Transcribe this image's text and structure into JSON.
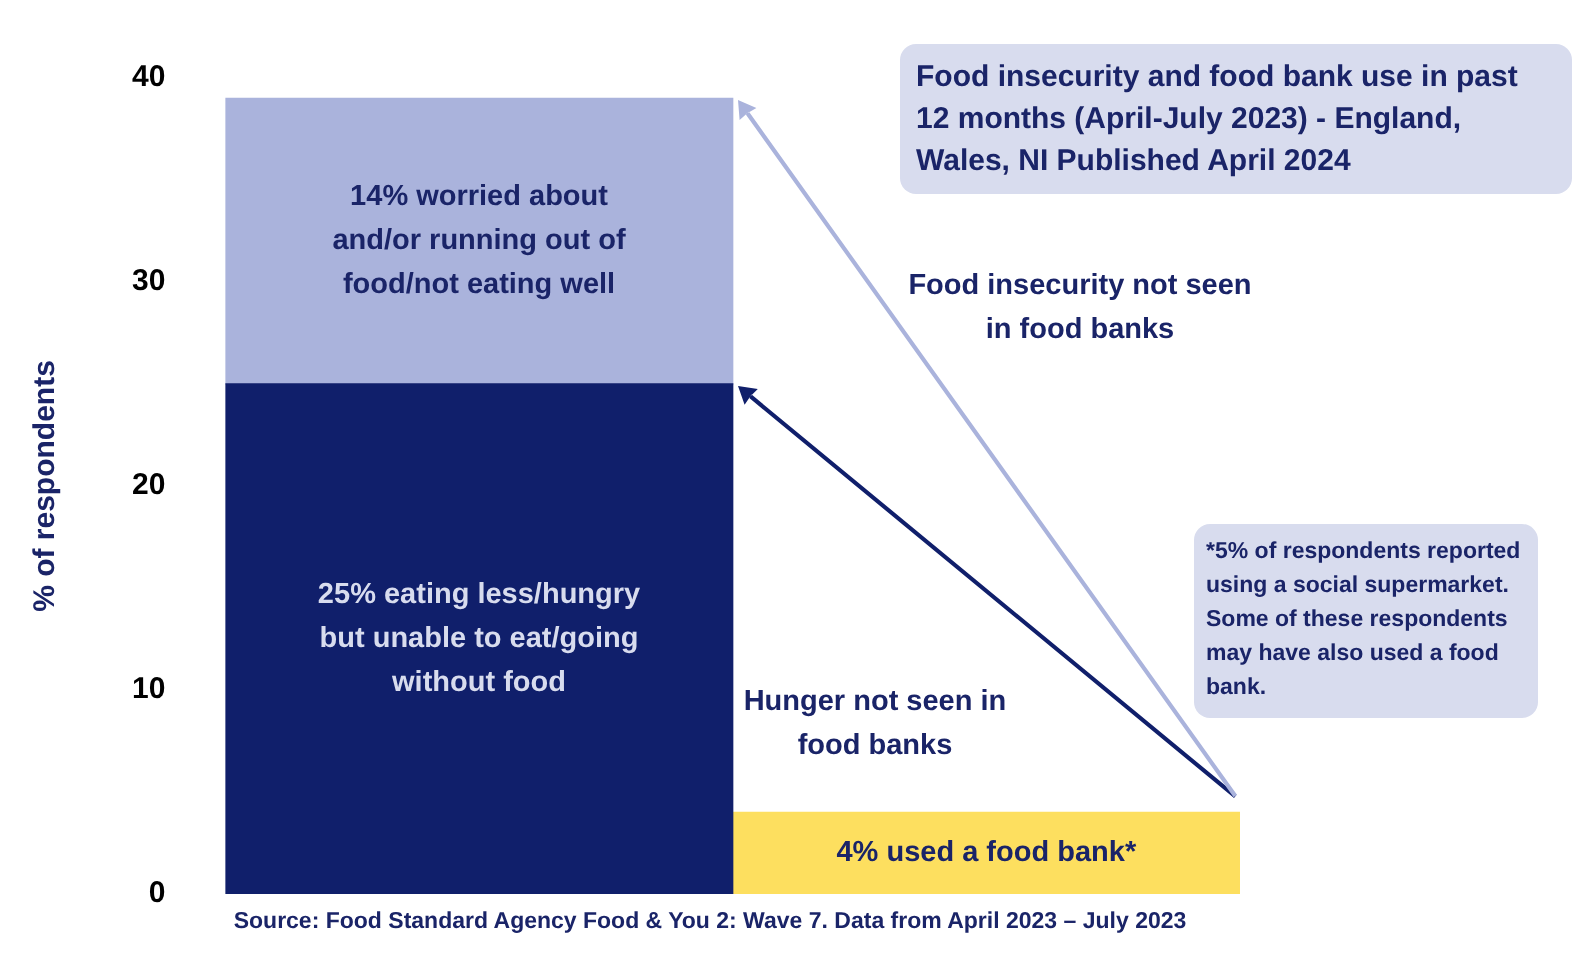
{
  "chart_data": {
    "type": "bar",
    "stacked": true,
    "title": "Food insecurity and food bank use in past 12 months (April-July 2023) - England, Wales, NI Published April 2024",
    "ylabel": "% of respondents",
    "categories": [
      null,
      null
    ],
    "series": [
      {
        "color": "#101f6b",
        "values": [
          25,
          null
        ],
        "value_labels": [
          "25% eating less/hungry but unable to eat/going without food",
          null
        ]
      },
      {
        "color": "#aab3dc",
        "values": [
          14,
          null
        ],
        "value_labels": [
          "14% worried about and/or running out of food/not eating well",
          null
        ]
      },
      {
        "color": "#fddf5f",
        "values": [
          null,
          4
        ],
        "value_labels": [
          null,
          "4% used a food bank*"
        ]
      }
    ],
    "ylim": [
      0,
      40
    ],
    "yticks": [
      0,
      10,
      20,
      30,
      40
    ],
    "grid": false,
    "legend": false,
    "tick_labels": "y",
    "annotations": [
      "Food insecurity not seen in food banks",
      "Hunger not seen in food banks",
      "*5% of respondents reported using a social supermarket. Some of these respondents may have also used a food bank.",
      "Source: Food Standard Agency Food & You 2: Wave 7. Data from April 2023 – July 2023"
    ]
  }
}
